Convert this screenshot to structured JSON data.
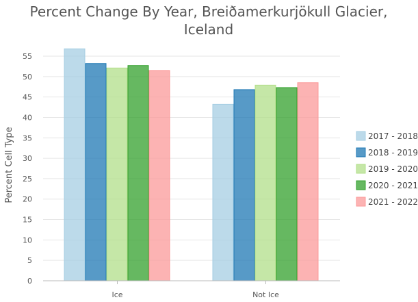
{
  "chart_data": {
    "type": "bar",
    "title": [
      "Percent Change By Year, Breiðamerkurjökull Glacier,",
      "Iceland"
    ],
    "xlabel": "",
    "ylabel": "Percent Cell Type",
    "categories": [
      "Ice",
      "Not Ice"
    ],
    "ylim": [
      0,
      55
    ],
    "yticks": [
      0,
      5,
      10,
      15,
      20,
      25,
      30,
      35,
      40,
      45,
      50,
      55
    ],
    "grid": true,
    "legend_placement": "right",
    "series": [
      {
        "name": "2017 - 2018",
        "values": [
          56.8,
          43.2
        ],
        "color": "#a6cee3"
      },
      {
        "name": "2018 - 2019",
        "values": [
          53.2,
          46.8
        ],
        "color": "#1f78b4"
      },
      {
        "name": "2019 - 2020",
        "values": [
          52.1,
          47.9
        ],
        "color": "#b2df8a"
      },
      {
        "name": "2020 - 2021",
        "values": [
          52.7,
          47.3
        ],
        "color": "#33a02c"
      },
      {
        "name": "2021 - 2022",
        "values": [
          51.5,
          48.5
        ],
        "color": "#fb9a99"
      }
    ]
  }
}
